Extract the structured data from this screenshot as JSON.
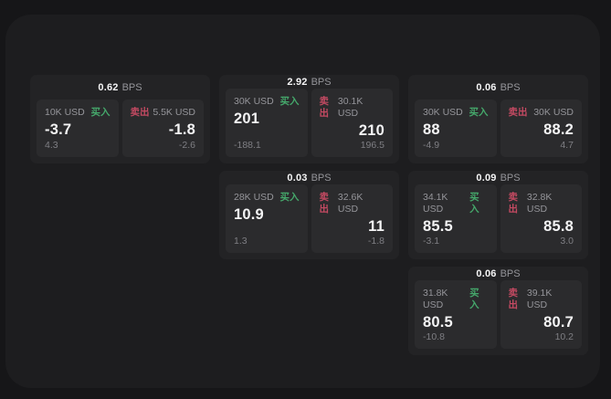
{
  "colors": {
    "buy_green": "#45a86b",
    "sell_red": "#c44a62"
  },
  "cards": [
    {
      "bps_value": "0.62",
      "bps_unit": "BPS",
      "buy": {
        "amount": "10K USD",
        "side_label": "买入",
        "price": "-3.7",
        "delta": "4.3"
      },
      "sell": {
        "side_label": "卖出",
        "amount": "5.5K USD",
        "price": "-1.8",
        "delta": "-2.6"
      }
    },
    {
      "bps_value": "2.92",
      "bps_unit": "BPS",
      "buy": {
        "amount": "30K USD",
        "side_label": "买入",
        "price": "201",
        "delta": "-188.1"
      },
      "sell": {
        "side_label": "卖出",
        "amount": "30.1K USD",
        "price": "210",
        "delta": "196.5"
      }
    },
    {
      "bps_value": "0.06",
      "bps_unit": "BPS",
      "buy": {
        "amount": "30K USD",
        "side_label": "买入",
        "price": "88",
        "delta": "-4.9"
      },
      "sell": {
        "side_label": "卖出",
        "amount": "30K USD",
        "price": "88.2",
        "delta": "4.7"
      }
    },
    {
      "bps_value": "0.03",
      "bps_unit": "BPS",
      "buy": {
        "amount": "28K USD",
        "side_label": "买入",
        "price": "10.9",
        "delta": "1.3"
      },
      "sell": {
        "side_label": "卖出",
        "amount": "32.6K USD",
        "price": "11",
        "delta": "-1.8"
      }
    },
    {
      "bps_value": "0.09",
      "bps_unit": "BPS",
      "buy": {
        "amount": "34.1K USD",
        "side_label": "买入",
        "price": "85.5",
        "delta": "-3.1"
      },
      "sell": {
        "side_label": "卖出",
        "amount": "32.8K USD",
        "price": "85.8",
        "delta": "3.0"
      }
    },
    {
      "bps_value": "0.06",
      "bps_unit": "BPS",
      "buy": {
        "amount": "31.8K USD",
        "side_label": "买入",
        "price": "80.5",
        "delta": "-10.8"
      },
      "sell": {
        "side_label": "卖出",
        "amount": "39.1K USD",
        "price": "80.7",
        "delta": "10.2"
      }
    }
  ]
}
